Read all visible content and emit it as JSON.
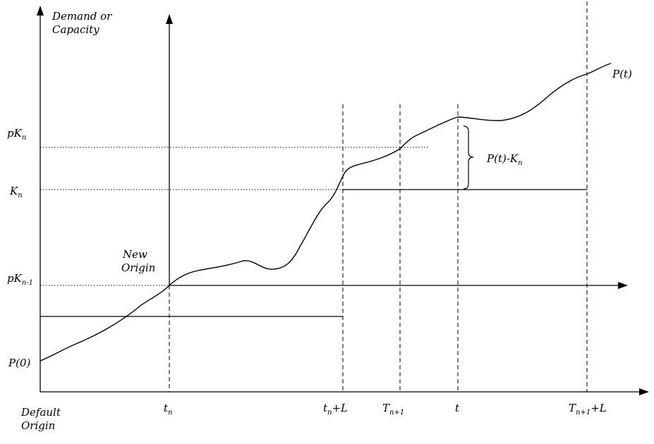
{
  "axis": {
    "y_label_line1": "Demand or",
    "y_label_line2": "Capacity",
    "origin_label_line1": "Default",
    "origin_label_line2": "Origin",
    "new_origin_line1": "New",
    "new_origin_line2": "Origin"
  },
  "y_labels": {
    "pKn_base": "pK",
    "pKn_sub": "n",
    "Kn_base": "K",
    "Kn_sub": "n",
    "pKn1_base": "pK",
    "pKn1_sub": "n-1",
    "P0": "P(0)"
  },
  "x_labels": {
    "tn_base": "t",
    "tn_sub": "n",
    "tnL_base": "t",
    "tnL_sub": "n",
    "tnL_suffix": "+L",
    "Tn1_base": "T",
    "Tn1_sub": "n+1",
    "t": "t",
    "Tn1L_base": "T",
    "Tn1L_sub": "n+1",
    "Tn1L_suffix": "+L"
  },
  "annotations": {
    "curve_label": "P(t)",
    "gap_label_base": "P(t)-K",
    "gap_label_sub": "n"
  }
}
